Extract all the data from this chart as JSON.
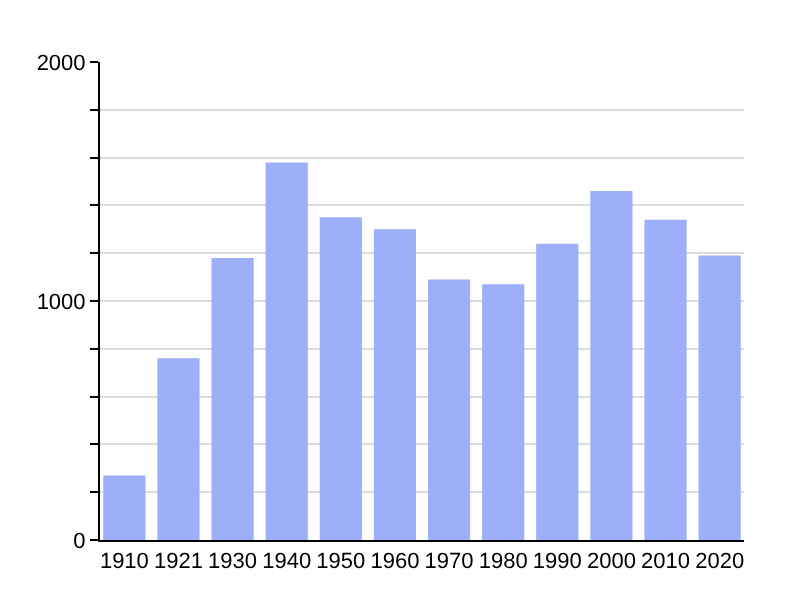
{
  "chart_data": {
    "type": "bar",
    "categories": [
      "1910",
      "1921",
      "1930",
      "1940",
      "1950",
      "1960",
      "1970",
      "1980",
      "1990",
      "2000",
      "2010",
      "2020"
    ],
    "values": [
      270,
      760,
      1180,
      1580,
      1350,
      1300,
      1090,
      1070,
      1240,
      1460,
      1340,
      1190
    ],
    "color": "#9daff8",
    "ylim": [
      0,
      2000
    ],
    "yticks": [
      0,
      {
        "value": 200,
        "label": null
      },
      {
        "value": 400,
        "label": null
      },
      {
        "value": 600,
        "label": null
      },
      {
        "value": 800,
        "label": null
      },
      1000,
      {
        "value": 1200,
        "label": null
      },
      {
        "value": 1400,
        "label": null
      },
      {
        "value": 1600,
        "label": null
      },
      {
        "value": 1800,
        "label": null
      },
      2000
    ],
    "grid": "y"
  }
}
